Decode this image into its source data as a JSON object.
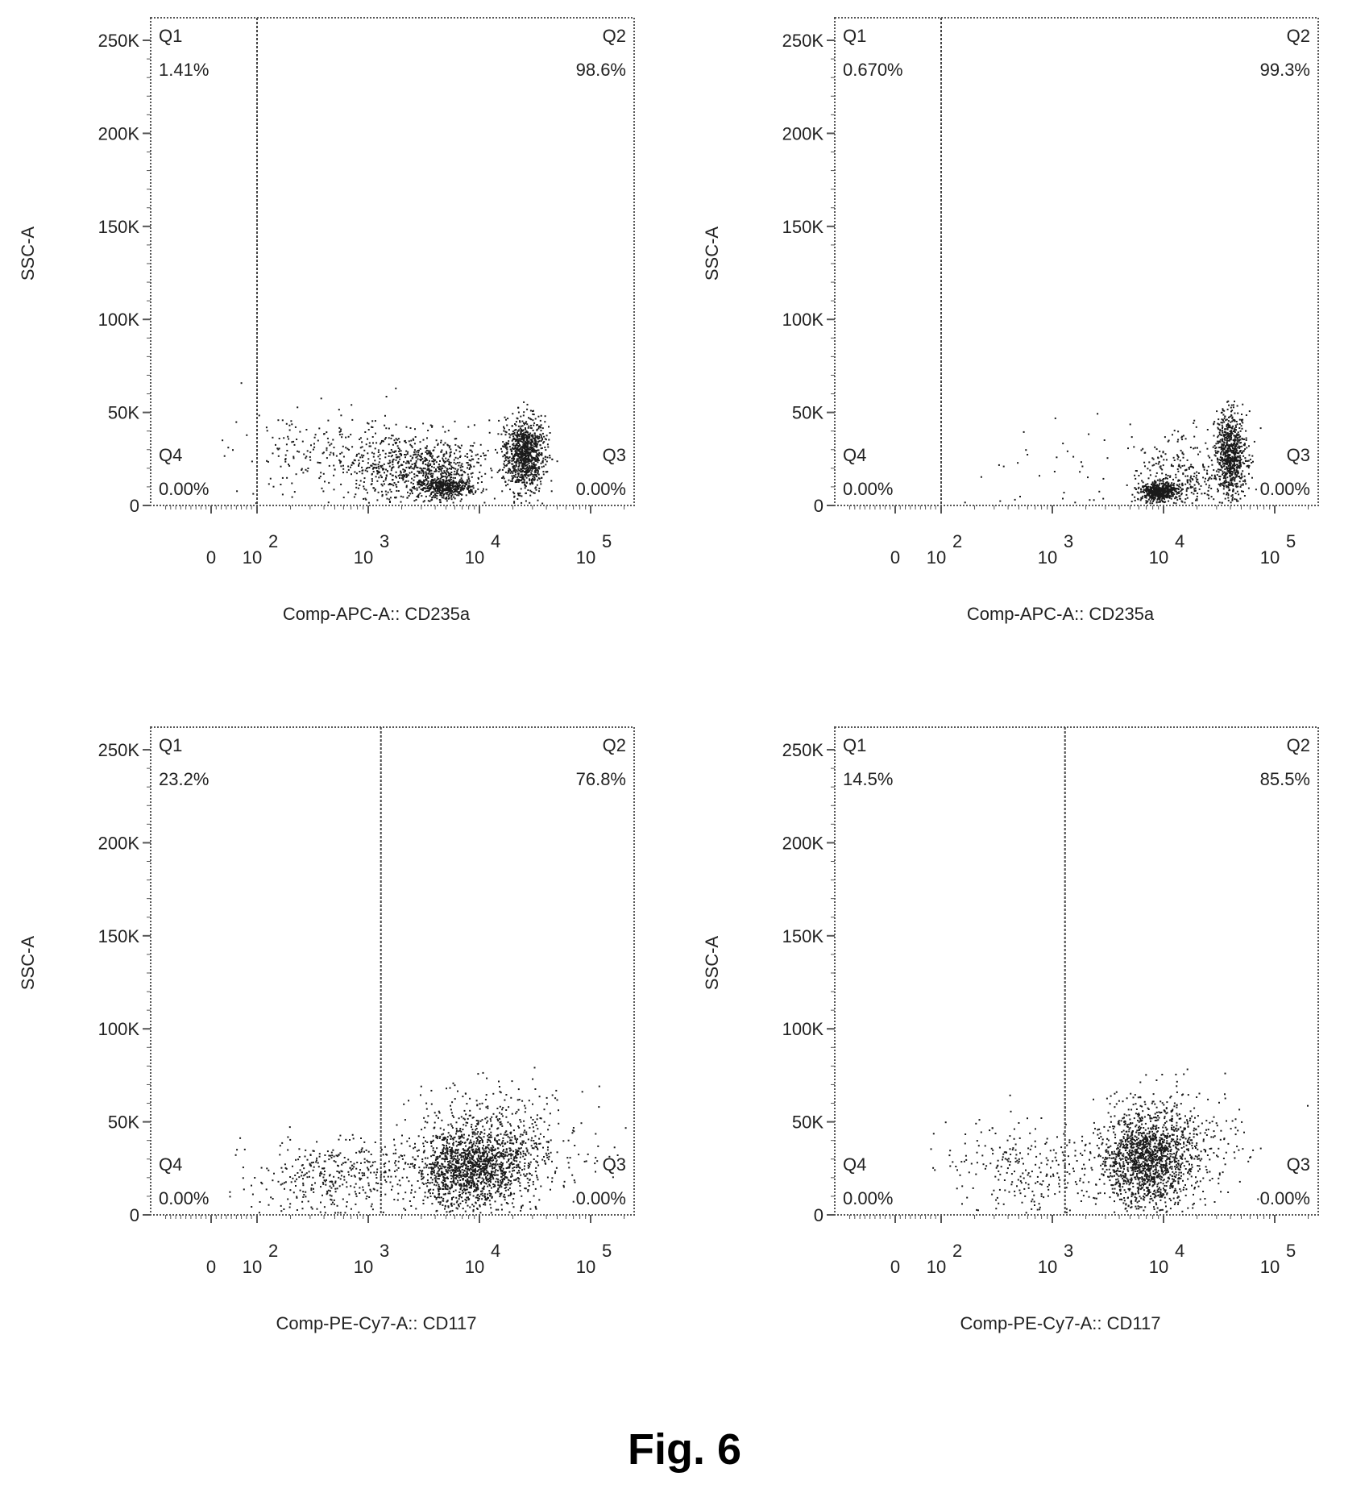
{
  "figure": {
    "caption": "Fig. 6"
  },
  "style": {
    "dot_color": "#1a1a1a",
    "frame_color": "#555555",
    "gate_color": "#444444"
  },
  "chart_data": [
    {
      "type": "scatter",
      "xlabel": "Comp-APC-A:: CD235a",
      "ylabel": "SSC-A",
      "x_scale": "biexponential",
      "xlim": [
        -100,
        260000
      ],
      "ylim": [
        0,
        262144
      ],
      "xticks": [
        {
          "value": 0,
          "base": "0",
          "exp": ""
        },
        {
          "value": 100,
          "base": "10",
          "exp": "2"
        },
        {
          "value": 1000,
          "base": "10",
          "exp": "3"
        },
        {
          "value": 10000,
          "base": "10",
          "exp": "4"
        },
        {
          "value": 100000,
          "base": "10",
          "exp": "5"
        }
      ],
      "yticks": [
        {
          "value": 0,
          "label": "0"
        },
        {
          "value": 50000,
          "label": "50K"
        },
        {
          "value": 100000,
          "label": "100K"
        },
        {
          "value": 150000,
          "label": "150K"
        },
        {
          "value": 200000,
          "label": "200K"
        },
        {
          "value": 250000,
          "label": "250K"
        }
      ],
      "gate_x": 100,
      "quadrants": [
        {
          "name": "Q1",
          "value": "1.41%"
        },
        {
          "name": "Q2",
          "value": "98.6%"
        },
        {
          "name": "Q3",
          "value": "0.00%"
        },
        {
          "name": "Q4",
          "value": "0.00%"
        }
      ],
      "clusters": [
        {
          "x_center": 25000,
          "x_spread_decades": 0.09,
          "y_center": 28000,
          "y_spread": 10000,
          "count": 950
        },
        {
          "x_center": 5000,
          "x_spread_decades": 0.12,
          "y_center": 10000,
          "y_spread": 2500,
          "count": 380
        },
        {
          "x_center": 3000,
          "x_spread_decades": 0.3,
          "y_center": 20000,
          "y_spread": 9000,
          "count": 750
        },
        {
          "x_center": 500,
          "x_spread_decades": 0.45,
          "y_center": 27000,
          "y_spread": 11000,
          "count": 260
        }
      ]
    },
    {
      "type": "scatter",
      "xlabel": "Comp-APC-A:: CD235a",
      "ylabel": "SSC-A",
      "x_scale": "biexponential",
      "xlim": [
        -100,
        260000
      ],
      "ylim": [
        0,
        262144
      ],
      "xticks": [
        {
          "value": 0,
          "base": "0",
          "exp": ""
        },
        {
          "value": 100,
          "base": "10",
          "exp": "2"
        },
        {
          "value": 1000,
          "base": "10",
          "exp": "3"
        },
        {
          "value": 10000,
          "base": "10",
          "exp": "4"
        },
        {
          "value": 100000,
          "base": "10",
          "exp": "5"
        }
      ],
      "yticks": [
        {
          "value": 0,
          "label": "0"
        },
        {
          "value": 50000,
          "label": "50K"
        },
        {
          "value": 100000,
          "label": "100K"
        },
        {
          "value": 150000,
          "label": "150K"
        },
        {
          "value": 200000,
          "label": "200K"
        },
        {
          "value": 250000,
          "label": "250K"
        }
      ],
      "gate_x": 100,
      "quadrants": [
        {
          "name": "Q1",
          "value": "0.670%"
        },
        {
          "name": "Q2",
          "value": "99.3%"
        },
        {
          "name": "Q3",
          "value": "0.00%"
        },
        {
          "name": "Q4",
          "value": "0.00%"
        }
      ],
      "clusters": [
        {
          "x_center": 40000,
          "x_spread_decades": 0.07,
          "y_center": 28000,
          "y_spread": 11000,
          "count": 750
        },
        {
          "x_center": 9000,
          "x_spread_decades": 0.09,
          "y_center": 8000,
          "y_spread": 2500,
          "count": 520
        },
        {
          "x_center": 15000,
          "x_spread_decades": 0.2,
          "y_center": 18000,
          "y_spread": 10000,
          "count": 260
        },
        {
          "x_center": 2000,
          "x_spread_decades": 0.5,
          "y_center": 15000,
          "y_spread": 15000,
          "count": 50
        }
      ]
    },
    {
      "type": "scatter",
      "xlabel": "Comp-PE-Cy7-A:: CD117",
      "ylabel": "SSC-A",
      "x_scale": "biexponential",
      "xlim": [
        -100,
        260000
      ],
      "ylim": [
        0,
        262144
      ],
      "xticks": [
        {
          "value": 0,
          "base": "0",
          "exp": ""
        },
        {
          "value": 100,
          "base": "10",
          "exp": "2"
        },
        {
          "value": 1000,
          "base": "10",
          "exp": "3"
        },
        {
          "value": 10000,
          "base": "10",
          "exp": "4"
        },
        {
          "value": 100000,
          "base": "10",
          "exp": "5"
        }
      ],
      "yticks": [
        {
          "value": 0,
          "label": "0"
        },
        {
          "value": 50000,
          "label": "50K"
        },
        {
          "value": 100000,
          "label": "100K"
        },
        {
          "value": 150000,
          "label": "150K"
        },
        {
          "value": 200000,
          "label": "200K"
        },
        {
          "value": 250000,
          "label": "250K"
        }
      ],
      "gate_x": 1300,
      "quadrants": [
        {
          "name": "Q1",
          "value": "23.2%"
        },
        {
          "name": "Q2",
          "value": "76.8%"
        },
        {
          "name": "Q3",
          "value": "0.00%"
        },
        {
          "name": "Q4",
          "value": "0.00%"
        }
      ],
      "clusters": [
        {
          "x_center": 8000,
          "x_spread_decades": 0.25,
          "y_center": 25000,
          "y_spread": 10000,
          "count": 1300
        },
        {
          "x_center": 15000,
          "x_spread_decades": 0.38,
          "y_center": 38000,
          "y_spread": 15000,
          "count": 550
        },
        {
          "x_center": 500,
          "x_spread_decades": 0.4,
          "y_center": 22000,
          "y_spread": 10000,
          "count": 380
        }
      ]
    },
    {
      "type": "scatter",
      "xlabel": "Comp-PE-Cy7-A:: CD117",
      "ylabel": "SSC-A",
      "x_scale": "biexponential",
      "xlim": [
        -100,
        260000
      ],
      "ylim": [
        0,
        262144
      ],
      "xticks": [
        {
          "value": 0,
          "base": "0",
          "exp": ""
        },
        {
          "value": 100,
          "base": "10",
          "exp": "2"
        },
        {
          "value": 1000,
          "base": "10",
          "exp": "3"
        },
        {
          "value": 10000,
          "base": "10",
          "exp": "4"
        },
        {
          "value": 100000,
          "base": "10",
          "exp": "5"
        }
      ],
      "yticks": [
        {
          "value": 0,
          "label": "0"
        },
        {
          "value": 50000,
          "label": "50K"
        },
        {
          "value": 100000,
          "label": "100K"
        },
        {
          "value": 150000,
          "label": "150K"
        },
        {
          "value": 200000,
          "label": "200K"
        },
        {
          "value": 250000,
          "label": "250K"
        }
      ],
      "gate_x": 1300,
      "quadrants": [
        {
          "name": "Q1",
          "value": "14.5%"
        },
        {
          "name": "Q2",
          "value": "85.5%"
        },
        {
          "name": "Q3",
          "value": "0.00%"
        },
        {
          "name": "Q4",
          "value": "0.00%"
        }
      ],
      "clusters": [
        {
          "x_center": 7000,
          "x_spread_decades": 0.22,
          "y_center": 30000,
          "y_spread": 12000,
          "count": 1350
        },
        {
          "x_center": 12000,
          "x_spread_decades": 0.32,
          "y_center": 40000,
          "y_spread": 15000,
          "count": 350
        },
        {
          "x_center": 600,
          "x_spread_decades": 0.4,
          "y_center": 25000,
          "y_spread": 12000,
          "count": 260
        }
      ]
    }
  ]
}
